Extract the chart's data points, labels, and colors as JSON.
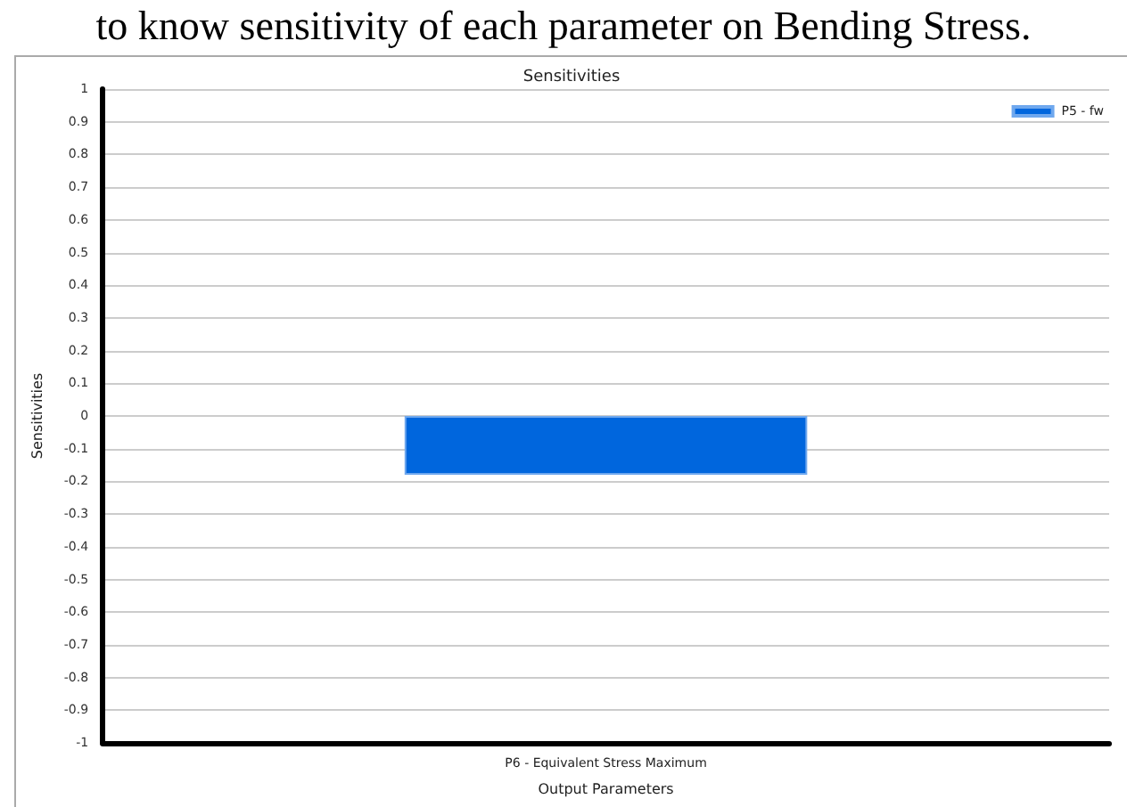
{
  "chart_data": {
    "type": "bar",
    "title": "Sensitivities",
    "xlabel": "Output Parameters",
    "ylabel": "Sensitivities",
    "annotations": [
      "to know sensitivity of each parameter on Bending Stress."
    ],
    "categories": [
      "P6 - Equivalent Stress Maximum"
    ],
    "series": [
      {
        "name": "P5 - fw",
        "color": "#0066dd",
        "values": [
          -0.18
        ]
      }
    ],
    "ylim": [
      -1,
      1
    ],
    "yticks": [
      -1,
      -0.9,
      -0.8,
      -0.7,
      -0.6,
      -0.5,
      -0.4,
      -0.3,
      -0.2,
      -0.1,
      0,
      0.1,
      0.2,
      0.3,
      0.4,
      0.5,
      0.6,
      0.7,
      0.8,
      0.9,
      1
    ],
    "grid": "y",
    "legend": "top right"
  }
}
